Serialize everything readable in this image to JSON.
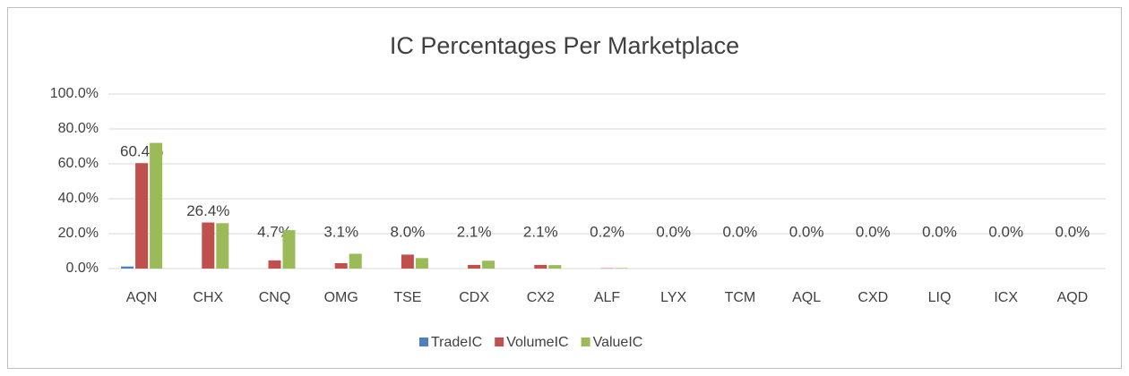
{
  "chart_data": {
    "type": "bar",
    "title": "IC Percentages Per Marketplace",
    "categories": [
      "AQN",
      "CHX",
      "CNQ",
      "OMG",
      "TSE",
      "CDX",
      "CX2",
      "ALF",
      "LYX",
      "TCM",
      "AQL",
      "CXD",
      "LIQ",
      "ICX",
      "AQD"
    ],
    "series": [
      {
        "name": "TradeIC",
        "color": "#4f81bd",
        "values": [
          1.2,
          0,
          0,
          0,
          0,
          0,
          0,
          0,
          0,
          0,
          0,
          0,
          0,
          0,
          0
        ]
      },
      {
        "name": "VolumeIC",
        "color": "#c0504d",
        "values": [
          60.4,
          26.4,
          4.7,
          3.1,
          8.0,
          2.1,
          2.1,
          0.2,
          0.0,
          0.0,
          0.0,
          0.0,
          0.0,
          0.0,
          0.0
        ],
        "value_labels": [
          "60.4%",
          "26.4%",
          "4.7%",
          "3.1%",
          "8.0%",
          "2.1%",
          "2.1%",
          "0.2%",
          "0.0%",
          "0.0%",
          "0.0%",
          "0.0%",
          "0.0%",
          "0.0%",
          "0.0%"
        ]
      },
      {
        "name": "ValueIC",
        "color": "#9bbb59",
        "values": [
          72,
          26,
          22,
          8.5,
          6,
          4.5,
          2,
          0.3,
          0,
          0,
          0,
          0,
          0,
          0,
          0
        ]
      }
    ],
    "ylim": [
      0,
      100
    ],
    "yticks": [
      {
        "value": 0,
        "label": "0.0%"
      },
      {
        "value": 20,
        "label": "20.0%"
      },
      {
        "value": 40,
        "label": "40.0%"
      },
      {
        "value": 60,
        "label": "60.0%"
      },
      {
        "value": 80,
        "label": "80.0%"
      },
      {
        "value": 100,
        "label": "100.0%"
      }
    ],
    "grid": true,
    "legend": "bottom"
  }
}
